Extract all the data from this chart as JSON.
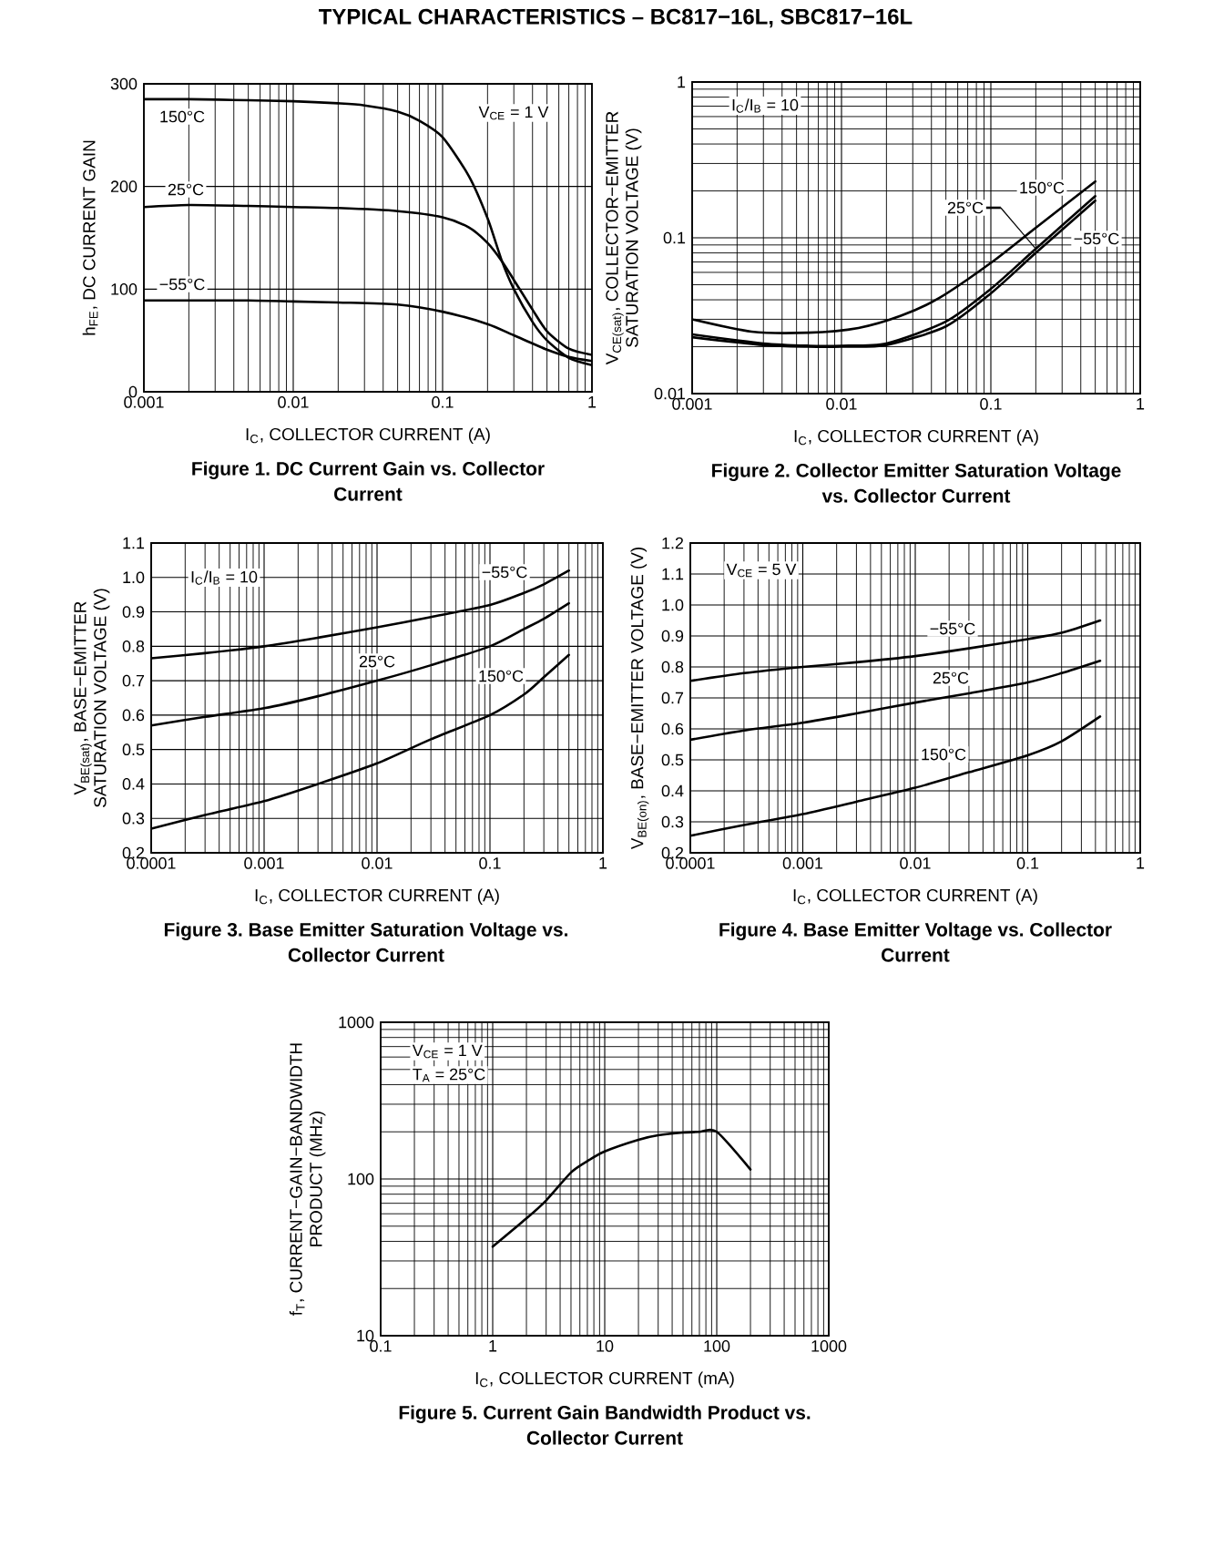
{
  "chart_data": [
    {
      "type": "line",
      "title": "Figure 1. DC Current Gain vs. Collector Current",
      "xlabel": "I$_{C}$, COLLECTOR CURRENT (A)",
      "ylabel": "h$_{FE}$, DC CURRENT GAIN",
      "annotations": [
        "TYPICAL CHARACTERISTICS – BC817−16L, SBC817−16L",
        "V$_{CE}$ = 1 V"
      ],
      "log": "x",
      "xlim": [
        0.001,
        1
      ],
      "xticks": [
        0.001,
        0.01,
        0.1,
        1
      ],
      "ylim": [
        0,
        300
      ],
      "yticks": [
        0,
        100,
        200,
        300
      ],
      "grid": true,
      "line_style": "solid",
      "series": [
        {
          "name": "150°C",
          "color": "#000000",
          "x": [
            0.001,
            0.002,
            0.005,
            0.01,
            0.02,
            0.03,
            0.05,
            0.07,
            0.1,
            0.15,
            0.2,
            0.25,
            0.3,
            0.4,
            0.5,
            0.7,
            1
          ],
          "values": [
            285,
            285,
            284,
            283,
            281,
            279,
            273,
            264,
            248,
            210,
            169,
            127,
            100,
            68,
            50,
            33,
            26
          ]
        },
        {
          "name": "25°C",
          "color": "#000000",
          "x": [
            0.001,
            0.002,
            0.005,
            0.01,
            0.02,
            0.05,
            0.1,
            0.15,
            0.2,
            0.25,
            0.3,
            0.4,
            0.5,
            0.7,
            1
          ],
          "values": [
            180,
            182,
            181,
            180,
            179,
            176,
            170,
            160,
            145,
            127,
            109,
            80,
            59,
            42,
            36
          ]
        },
        {
          "name": "−55°C",
          "color": "#000000",
          "x": [
            0.001,
            0.002,
            0.005,
            0.01,
            0.02,
            0.05,
            0.1,
            0.2,
            0.3,
            0.5,
            0.7,
            1
          ],
          "values": [
            89,
            89,
            89,
            88,
            87,
            85,
            78,
            66,
            55,
            41,
            34,
            30
          ]
        }
      ]
    },
    {
      "type": "line",
      "title": "Figure 2. Collector Emitter Saturation Voltage vs. Collector Current",
      "xlabel": "I$_{C}$, COLLECTOR CURRENT (A)",
      "ylabel": "V$_{CE(sat)}$, COLLECTOR−EMITTER SATURATION VOLTAGE (V)",
      "annotations": [
        "I$_{C}$/I$_{B}$ = 10"
      ],
      "log": "xy",
      "xlim": [
        0.001,
        1
      ],
      "xticks": [
        0.001,
        0.01,
        0.1,
        1
      ],
      "ylim": [
        0.01,
        1
      ],
      "yticks": [
        0.01,
        0.1,
        1
      ],
      "grid": true,
      "line_style": "solid",
      "series": [
        {
          "name": "150°C",
          "color": "#000000",
          "x": [
            0.001,
            0.0025,
            0.006,
            0.013,
            0.025,
            0.045,
            0.1,
            0.2,
            0.5
          ],
          "values": [
            0.03,
            0.025,
            0.0246,
            0.0264,
            0.0316,
            0.041,
            0.069,
            0.116,
            0.23
          ]
        },
        {
          "name": "25°C",
          "color": "#000000",
          "x": [
            0.001,
            0.003,
            0.006,
            0.01,
            0.02,
            0.05,
            0.1,
            0.2,
            0.5
          ],
          "values": [
            0.024,
            0.021,
            0.0203,
            0.0203,
            0.021,
            0.029,
            0.047,
            0.085,
            0.185
          ]
        },
        {
          "name": "−55°C",
          "color": "#000000",
          "x": [
            0.001,
            0.003,
            0.006,
            0.01,
            0.02,
            0.05,
            0.1,
            0.2,
            0.5
          ],
          "values": [
            0.023,
            0.0205,
            0.02,
            0.02,
            0.0205,
            0.027,
            0.044,
            0.08,
            0.173
          ]
        }
      ]
    },
    {
      "type": "line",
      "title": "Figure 3. Base Emitter Saturation Voltage vs. Collector Current",
      "xlabel": "I$_{C}$, COLLECTOR CURRENT (A)",
      "ylabel": "V$_{BE(sat)}$, BASE−EMITTER SATURATION VOLTAGE (V)",
      "annotations": [
        "I$_{C}$/I$_{B}$ = 10"
      ],
      "log": "x",
      "xlim": [
        0.0001,
        1
      ],
      "xticks": [
        0.0001,
        0.001,
        0.01,
        0.1,
        1
      ],
      "ylim": [
        0.2,
        1.1
      ],
      "yticks": [
        0.2,
        0.3,
        0.4,
        0.5,
        0.6,
        0.7,
        0.8,
        0.9,
        {
          "value": 1.0,
          "label": "1.0"
        },
        1.1
      ],
      "grid": true,
      "line_style": "solid",
      "series": [
        {
          "name": "−55°C",
          "color": "#000000",
          "x": [
            0.0001,
            0.0003,
            0.001,
            0.003,
            0.01,
            0.03,
            0.1,
            0.2,
            0.3,
            0.5
          ],
          "values": [
            0.765,
            0.78,
            0.8,
            0.825,
            0.855,
            0.885,
            0.92,
            0.955,
            0.98,
            1.02
          ]
        },
        {
          "name": "25°C",
          "color": "#000000",
          "x": [
            0.0001,
            0.0003,
            0.001,
            0.003,
            0.01,
            0.03,
            0.1,
            0.2,
            0.3,
            0.5
          ],
          "values": [
            0.57,
            0.595,
            0.62,
            0.655,
            0.7,
            0.745,
            0.8,
            0.85,
            0.88,
            0.925
          ]
        },
        {
          "name": "150°C",
          "color": "#000000",
          "x": [
            0.0001,
            0.0003,
            0.001,
            0.003,
            0.01,
            0.03,
            0.1,
            0.2,
            0.3,
            0.5
          ],
          "values": [
            0.27,
            0.31,
            0.35,
            0.4,
            0.46,
            0.53,
            0.6,
            0.66,
            0.71,
            0.775
          ]
        }
      ]
    },
    {
      "type": "line",
      "title": "Figure 4. Base Emitter Voltage vs. Collector Current",
      "xlabel": "I$_{C}$, COLLECTOR CURRENT (A)",
      "ylabel": "V$_{BE(on)}$, BASE−EMITTER VOLTAGE (V)",
      "annotations": [
        "V$_{CE}$ = 5 V"
      ],
      "log": "x",
      "xlim": [
        0.0001,
        1
      ],
      "xticks": [
        0.0001,
        0.001,
        0.01,
        0.1,
        1
      ],
      "ylim": [
        0.2,
        1.2
      ],
      "yticks": [
        0.2,
        0.3,
        0.4,
        0.5,
        0.6,
        0.7,
        0.8,
        0.9,
        {
          "value": 1.0,
          "label": "1.0"
        },
        1.1,
        1.2
      ],
      "grid": true,
      "line_style": "solid",
      "series": [
        {
          "name": "−55°C",
          "color": "#000000",
          "x": [
            0.0001,
            0.0003,
            0.001,
            0.003,
            0.01,
            0.03,
            0.1,
            0.2,
            0.44
          ],
          "values": [
            0.755,
            0.78,
            0.8,
            0.815,
            0.835,
            0.86,
            0.89,
            0.91,
            0.95
          ]
        },
        {
          "name": "25°C",
          "color": "#000000",
          "x": [
            0.0001,
            0.0003,
            0.001,
            0.003,
            0.01,
            0.03,
            0.1,
            0.2,
            0.44
          ],
          "values": [
            0.565,
            0.595,
            0.62,
            0.65,
            0.685,
            0.715,
            0.75,
            0.78,
            0.82
          ]
        },
        {
          "name": "150°C",
          "color": "#000000",
          "x": [
            0.0001,
            0.0003,
            0.001,
            0.003,
            0.01,
            0.03,
            0.1,
            0.2,
            0.44
          ],
          "values": [
            0.255,
            0.29,
            0.325,
            0.365,
            0.41,
            0.46,
            0.515,
            0.56,
            0.64
          ]
        }
      ]
    },
    {
      "type": "line",
      "title": "Figure 5. Current Gain Bandwidth Product vs. Collector Current",
      "xlabel": "I$_{C}$, COLLECTOR CURRENT (mA)",
      "ylabel": "f$_{T}$, CURRENT−GAIN−BANDWIDTH PRODUCT (MHz)",
      "annotations": [
        "V$_{CE}$ = 1 V",
        "T$_{A}$ = 25°C"
      ],
      "log": "xy",
      "xlim": [
        0.1,
        1000
      ],
      "xticks": [
        0.1,
        1,
        10,
        100,
        1000
      ],
      "ylim": [
        10,
        1000
      ],
      "yticks": [
        10,
        100,
        1000
      ],
      "grid": true,
      "line_style": "solid",
      "series": [
        {
          "color": "#000000",
          "x": [
            1,
            2,
            3,
            5,
            7,
            10,
            20,
            30,
            50,
            70,
            100,
            200
          ],
          "values": [
            37,
            56,
            73,
            110,
            130,
            150,
            178,
            190,
            198,
            200,
            200,
            115
          ]
        }
      ]
    }
  ]
}
